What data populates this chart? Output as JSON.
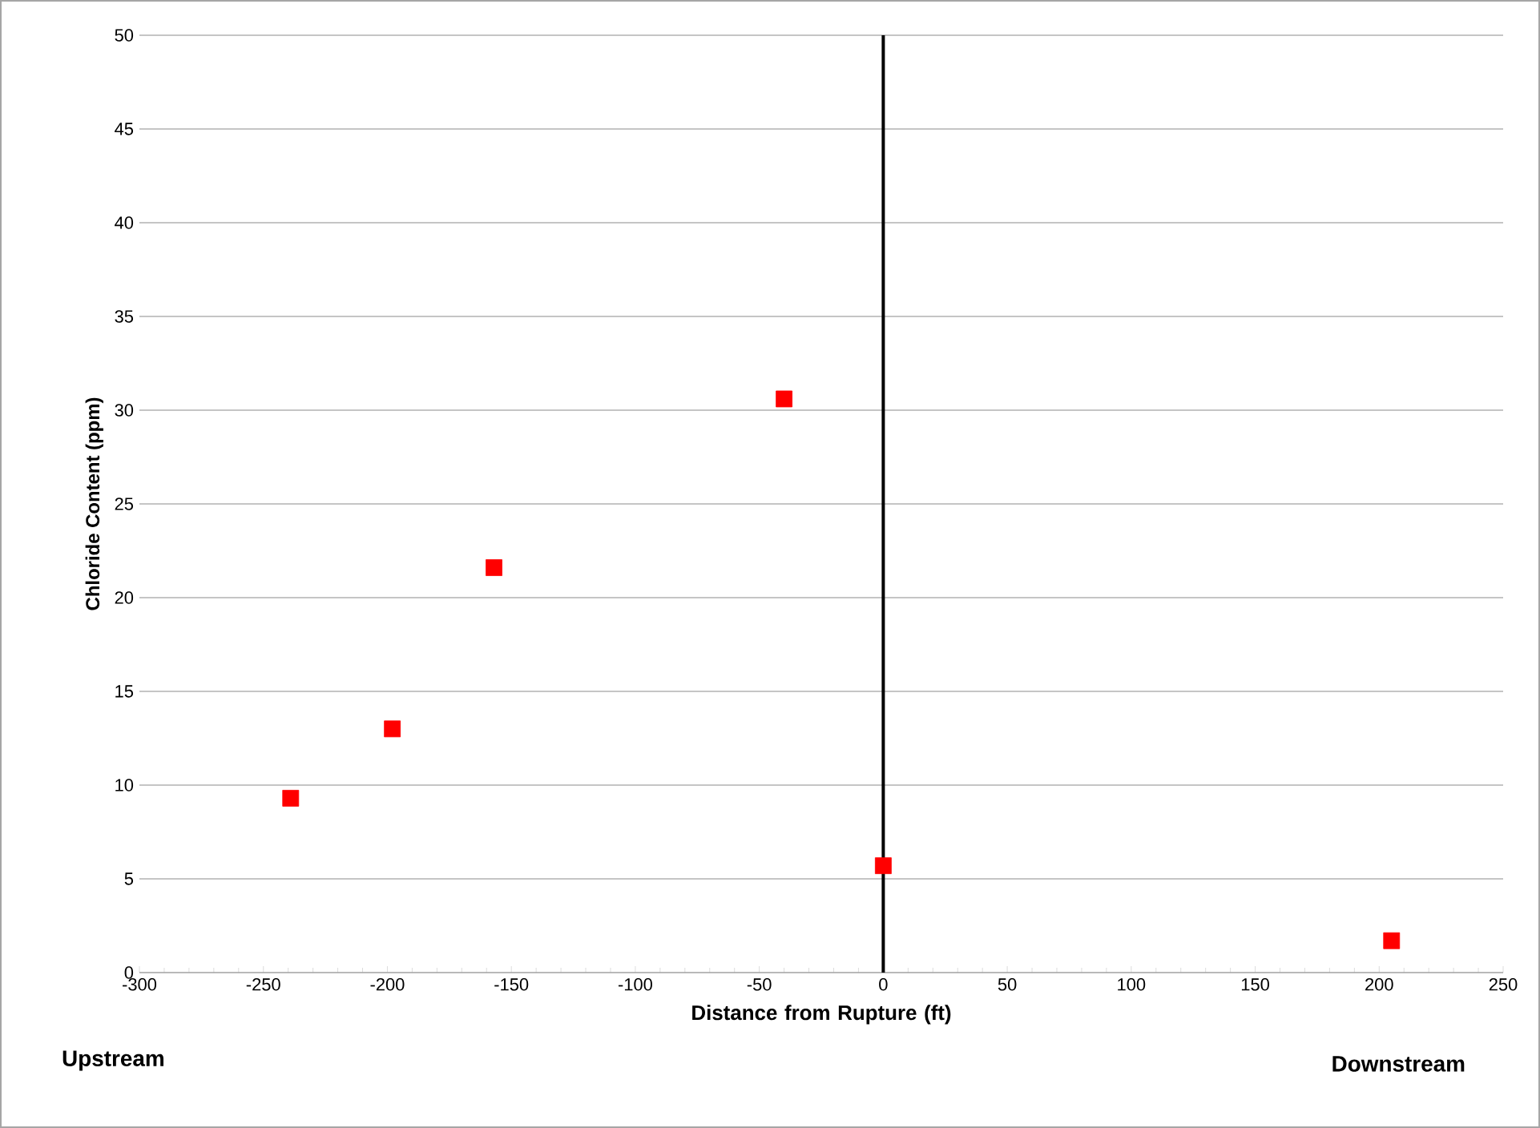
{
  "chart_data": {
    "type": "scatter",
    "xlabel": "Distance from Rupture (ft)",
    "ylabel": "Chloride Content (ppm)",
    "x": [
      -239,
      -198,
      -157,
      -40,
      0,
      205
    ],
    "values": [
      9.3,
      13.0,
      21.6,
      30.6,
      5.7,
      1.7
    ],
    "color": "#ff0000",
    "marker": "square",
    "grid": "y",
    "xlim": [
      -300,
      250
    ],
    "xticks": [
      -300,
      -250,
      -200,
      -150,
      -100,
      -50,
      0,
      50,
      100,
      150,
      200,
      250
    ],
    "ylim": [
      0,
      50
    ],
    "yticks": [
      0,
      5,
      10,
      15,
      20,
      25,
      30,
      35,
      40,
      45,
      50
    ],
    "ref_lines": [
      {
        "axis": "x",
        "value": 0,
        "color": "#000000"
      }
    ],
    "annotations": [
      "Upstream",
      "Downstream"
    ]
  }
}
